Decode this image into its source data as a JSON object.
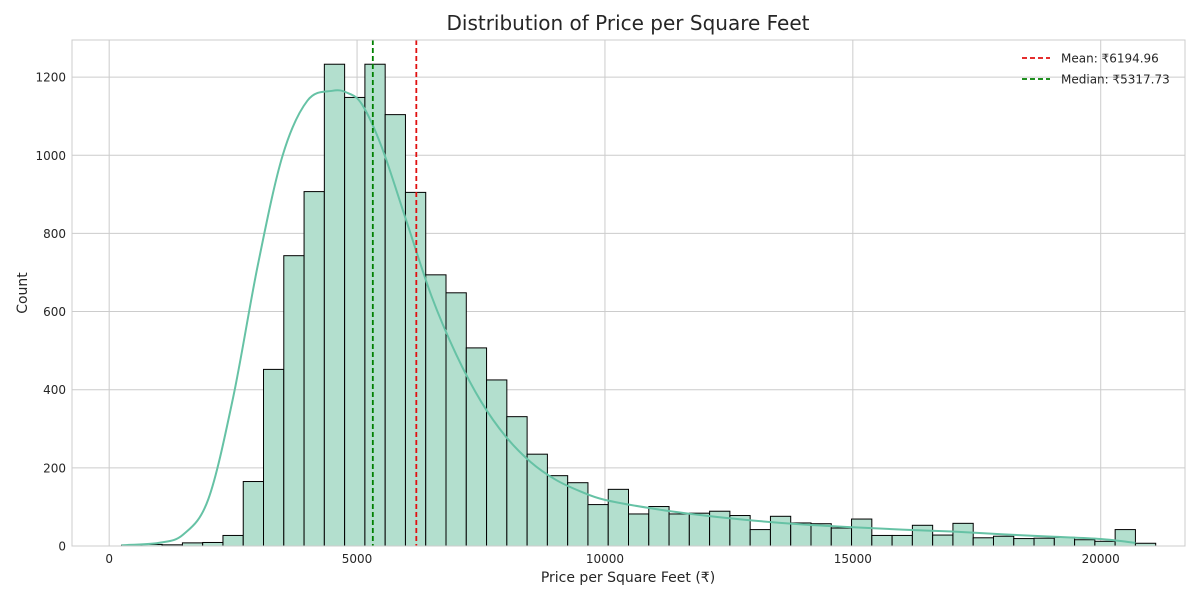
{
  "chart_data": {
    "type": "bar",
    "title": "Distribution of Price per Square Feet",
    "xlabel": "Price per Square Feet (₹)",
    "ylabel": "Count",
    "xlim": [
      -750,
      21700
    ],
    "ylim": [
      0,
      1295
    ],
    "xticks": [
      0,
      5000,
      10000,
      15000,
      20000
    ],
    "xtick_labels": [
      "0",
      "5000",
      "10000",
      "15000",
      "20000"
    ],
    "yticks": [
      0,
      200,
      400,
      600,
      800,
      1000,
      1200
    ],
    "ytick_labels": [
      "0",
      "200",
      "400",
      "600",
      "800",
      "1000",
      "1200"
    ],
    "grid": true,
    "legend_position": "top-right",
    "bins": {
      "start": 250,
      "width": 409,
      "counts": [
        2,
        4,
        3,
        8,
        9,
        27,
        165,
        452,
        743,
        907,
        1233,
        1148,
        1233,
        1104,
        905,
        694,
        648,
        507,
        425,
        331,
        235,
        180,
        162,
        106,
        145,
        82,
        101,
        82,
        84,
        89,
        78,
        42,
        76,
        59,
        57,
        46,
        69,
        27,
        27,
        53,
        28,
        58,
        21,
        25,
        19,
        20,
        22,
        16,
        12,
        42,
        7
      ]
    },
    "kde": {
      "x": [
        250,
        1000,
        1500,
        2000,
        2500,
        3000,
        3500,
        4000,
        4500,
        4800,
        5100,
        5500,
        6000,
        6500,
        7000,
        7500,
        8000,
        8500,
        9000,
        9500,
        10000,
        11000,
        12000,
        13000,
        14000,
        15000,
        16000,
        17000,
        18000,
        19000,
        20000,
        20700
      ],
      "y": [
        2,
        8,
        30,
        120,
        380,
        720,
        1000,
        1140,
        1165,
        1160,
        1130,
        1020,
        830,
        640,
        490,
        370,
        280,
        215,
        170,
        140,
        118,
        95,
        78,
        65,
        55,
        48,
        42,
        37,
        30,
        24,
        18,
        8
      ]
    },
    "series": [
      {
        "name": "Mean: ₹6194.96",
        "type": "vline",
        "x": 6194.96,
        "color": "#e01010"
      },
      {
        "name": "Median: ₹5317.73",
        "type": "vline",
        "x": 5317.73,
        "color": "#008000"
      }
    ],
    "colors": {
      "bar_fill": "#b3dfce",
      "bar_edge": "#000000",
      "kde": "#66c2a5",
      "grid": "#cccccc",
      "axes_edge": "#cccccc",
      "text": "#262626"
    }
  }
}
